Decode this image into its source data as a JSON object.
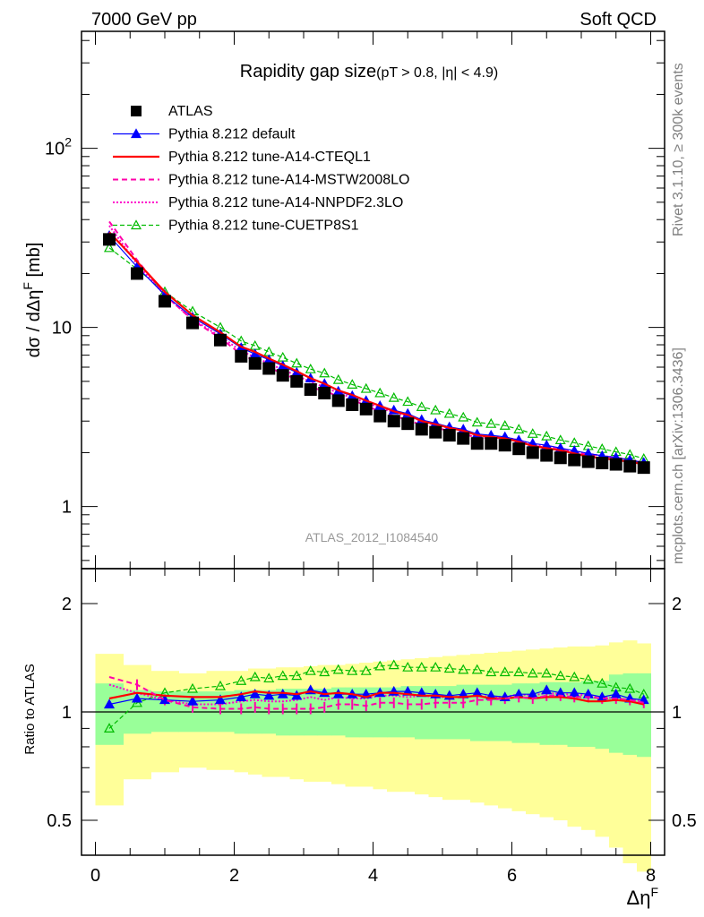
{
  "header": {
    "left": "7000 GeV pp",
    "right": "Soft QCD"
  },
  "side_text": {
    "rivet": "Rivet 3.1.10, ≥ 300k events",
    "mcplots": "mcplots.cern.ch [arXiv:1306.3436]"
  },
  "watermark": "ATLAS_2012_I1084540",
  "colors": {
    "atlas": "#000000",
    "default": "#0000ff",
    "cteql1": "#ff0000",
    "mstw": "#ff00aa",
    "nnpdf": "#ff00cc",
    "cuetp8s1": "#00bb00",
    "band_outer": "#ffff99",
    "band_inner": "#99ff99"
  },
  "chart_data": [
    {
      "type": "line",
      "title": "Rapidity gap size",
      "title_suffix": "(pT > 0.8, |η| < 4.9)",
      "xlabel": "Δη^F",
      "ylabel": "dσ / dΔη^F [mb]",
      "yscale": "log",
      "xlim": [
        -0.2,
        8.2
      ],
      "ylim": [
        0.45,
        450
      ],
      "x_ticks": [
        "0",
        "2",
        "4",
        "6",
        "8"
      ],
      "y_ticks": [
        "1",
        "10",
        "10^2"
      ],
      "x": [
        0.2,
        0.6,
        1.0,
        1.4,
        1.8,
        2.1,
        2.3,
        2.5,
        2.7,
        2.9,
        3.1,
        3.3,
        3.5,
        3.7,
        3.9,
        4.1,
        4.3,
        4.5,
        4.7,
        4.9,
        5.1,
        5.3,
        5.5,
        5.7,
        5.9,
        6.1,
        6.3,
        6.5,
        6.7,
        6.9,
        7.1,
        7.3,
        7.5,
        7.7,
        7.9
      ],
      "series": [
        {
          "name": "ATLAS",
          "style": "square",
          "values": [
            31,
            20,
            14,
            10.6,
            8.5,
            6.9,
            6.3,
            5.9,
            5.4,
            5.0,
            4.5,
            4.3,
            3.9,
            3.7,
            3.5,
            3.2,
            3.0,
            2.9,
            2.7,
            2.6,
            2.5,
            2.4,
            2.25,
            2.25,
            2.2,
            2.1,
            2.0,
            1.93,
            1.87,
            1.82,
            1.78,
            1.75,
            1.72,
            1.68,
            1.65
          ]
        },
        {
          "name": "Pythia 8.212 default",
          "style": "blue-tri",
          "values": [
            32.5,
            21.8,
            15.2,
            11.4,
            9.2,
            7.7,
            7.1,
            6.6,
            6.1,
            5.6,
            5.2,
            4.85,
            4.4,
            4.15,
            3.9,
            3.65,
            3.45,
            3.3,
            3.05,
            2.92,
            2.78,
            2.7,
            2.54,
            2.5,
            2.45,
            2.35,
            2.25,
            2.2,
            2.12,
            2.05,
            1.98,
            1.92,
            1.88,
            1.82,
            1.76
          ]
        },
        {
          "name": "Pythia 8.212 tune-A14-CTEQL1",
          "style": "red-solid",
          "values": [
            34,
            23.3,
            15.8,
            11.7,
            9.4,
            7.8,
            7.3,
            6.7,
            6.2,
            5.7,
            5.2,
            4.85,
            4.45,
            4.2,
            3.9,
            3.65,
            3.4,
            3.25,
            3.0,
            2.88,
            2.75,
            2.65,
            2.5,
            2.45,
            2.4,
            2.3,
            2.18,
            2.12,
            2.06,
            1.98,
            1.9,
            1.86,
            1.82,
            1.78,
            1.72
          ]
        },
        {
          "name": "Pythia 8.212 tune-A14-MSTW2008LO",
          "style": "mag-dash",
          "values": [
            39,
            23.8,
            15.2,
            11.0,
            8.7,
            7.1,
            6.5,
            6.0,
            5.5,
            5.15,
            4.6,
            4.45,
            4.1,
            3.95,
            3.65,
            3.4,
            3.2,
            3.05,
            2.85,
            2.75,
            2.65,
            2.55,
            2.42,
            2.43,
            2.4,
            2.32,
            2.18,
            2.14,
            2.08,
            2.0,
            1.95,
            1.9,
            1.88,
            1.8,
            1.74
          ]
        },
        {
          "name": "Pythia 8.212 tune-A14-NNPDF2.3LO",
          "style": "mag-dot",
          "values": [
            37,
            22.6,
            15.1,
            11.1,
            8.9,
            7.4,
            6.8,
            6.3,
            5.8,
            5.4,
            4.95,
            4.65,
            4.3,
            4.05,
            3.8,
            3.55,
            3.35,
            3.2,
            3.0,
            2.85,
            2.75,
            2.65,
            2.5,
            2.48,
            2.43,
            2.35,
            2.22,
            2.18,
            2.1,
            2.03,
            1.97,
            1.92,
            1.88,
            1.82,
            1.76
          ]
        },
        {
          "name": "Pythia 8.212 tune-CUETP8S1",
          "style": "green-tri",
          "values": [
            27.8,
            21.2,
            15.8,
            12.3,
            10.0,
            8.4,
            7.9,
            7.3,
            6.8,
            6.3,
            5.85,
            5.55,
            5.1,
            4.8,
            4.55,
            4.3,
            4.05,
            3.85,
            3.6,
            3.45,
            3.3,
            3.15,
            2.95,
            2.9,
            2.83,
            2.7,
            2.55,
            2.47,
            2.35,
            2.27,
            2.18,
            2.1,
            2.02,
            1.95,
            1.85
          ]
        }
      ]
    },
    {
      "type": "line",
      "title": "",
      "xlabel": "Δη^F",
      "ylabel": "Ratio to ATLAS",
      "yscale": "log",
      "xlim": [
        -0.2,
        8.2
      ],
      "ylim": [
        0.4,
        2.5
      ],
      "x_ticks": [
        "0",
        "2",
        "4",
        "6",
        "8"
      ],
      "y_ticks": [
        "0.5",
        "1",
        "2"
      ],
      "band_edges": [
        0,
        0.4,
        0.8,
        1.2,
        1.6,
        2.0,
        2.2,
        2.4,
        2.6,
        2.8,
        3.0,
        3.2,
        3.4,
        3.6,
        3.8,
        4.0,
        4.2,
        4.4,
        4.6,
        4.8,
        5.0,
        5.2,
        5.4,
        5.6,
        5.8,
        6.0,
        6.2,
        6.4,
        6.6,
        6.8,
        7.0,
        7.2,
        7.4,
        7.6,
        7.8,
        8.0
      ],
      "band_outer_hi": [
        1.45,
        1.35,
        1.3,
        1.28,
        1.3,
        1.3,
        1.32,
        1.32,
        1.33,
        1.33,
        1.34,
        1.35,
        1.35,
        1.36,
        1.37,
        1.38,
        1.39,
        1.4,
        1.41,
        1.42,
        1.43,
        1.44,
        1.45,
        1.46,
        1.47,
        1.48,
        1.49,
        1.5,
        1.51,
        1.52,
        1.52,
        1.53,
        1.56,
        1.58,
        1.55
      ],
      "band_outer_lo": [
        0.55,
        0.65,
        0.68,
        0.7,
        0.69,
        0.68,
        0.67,
        0.66,
        0.66,
        0.65,
        0.64,
        0.64,
        0.63,
        0.62,
        0.62,
        0.61,
        0.6,
        0.6,
        0.59,
        0.58,
        0.57,
        0.57,
        0.56,
        0.55,
        0.54,
        0.53,
        0.52,
        0.51,
        0.5,
        0.48,
        0.47,
        0.45,
        0.42,
        0.38,
        0.36
      ],
      "band_inner_hi": [
        1.2,
        1.15,
        1.14,
        1.14,
        1.14,
        1.15,
        1.15,
        1.15,
        1.16,
        1.16,
        1.16,
        1.16,
        1.17,
        1.17,
        1.17,
        1.17,
        1.17,
        1.18,
        1.18,
        1.18,
        1.18,
        1.19,
        1.19,
        1.19,
        1.19,
        1.2,
        1.2,
        1.21,
        1.21,
        1.21,
        1.22,
        1.22,
        1.27,
        1.28,
        1.28
      ],
      "band_inner_lo": [
        0.81,
        0.87,
        0.88,
        0.88,
        0.88,
        0.87,
        0.87,
        0.87,
        0.86,
        0.86,
        0.86,
        0.86,
        0.86,
        0.85,
        0.85,
        0.85,
        0.85,
        0.85,
        0.84,
        0.84,
        0.84,
        0.84,
        0.83,
        0.83,
        0.83,
        0.82,
        0.82,
        0.81,
        0.81,
        0.8,
        0.8,
        0.79,
        0.77,
        0.76,
        0.75
      ],
      "x": [
        0.2,
        0.6,
        1.0,
        1.4,
        1.8,
        2.1,
        2.3,
        2.5,
        2.7,
        2.9,
        3.1,
        3.3,
        3.5,
        3.7,
        3.9,
        4.1,
        4.3,
        4.5,
        4.7,
        4.9,
        5.1,
        5.3,
        5.5,
        5.7,
        5.9,
        6.1,
        6.3,
        6.5,
        6.7,
        6.9,
        7.1,
        7.3,
        7.5,
        7.7,
        7.9
      ],
      "series": [
        {
          "name": "Pythia 8.212 default",
          "style": "blue-tri",
          "values": [
            1.05,
            1.09,
            1.08,
            1.07,
            1.08,
            1.1,
            1.12,
            1.11,
            1.12,
            1.11,
            1.15,
            1.13,
            1.12,
            1.12,
            1.12,
            1.13,
            1.14,
            1.14,
            1.13,
            1.12,
            1.11,
            1.12,
            1.13,
            1.11,
            1.1,
            1.12,
            1.12,
            1.15,
            1.13,
            1.13,
            1.12,
            1.1,
            1.12,
            1.09,
            1.08
          ]
        },
        {
          "name": "Pythia 8.212 tune-A14-CTEQL1",
          "style": "red-solid",
          "values": [
            1.09,
            1.13,
            1.11,
            1.1,
            1.1,
            1.12,
            1.14,
            1.13,
            1.13,
            1.12,
            1.14,
            1.12,
            1.13,
            1.12,
            1.1,
            1.13,
            1.13,
            1.12,
            1.11,
            1.11,
            1.1,
            1.1,
            1.11,
            1.09,
            1.09,
            1.1,
            1.09,
            1.1,
            1.1,
            1.09,
            1.07,
            1.07,
            1.08,
            1.07,
            1.05
          ]
        },
        {
          "name": "Pythia 8.212 tune-A14-MSTW2008LO",
          "style": "mag-dash",
          "values": [
            1.25,
            1.19,
            1.08,
            1.03,
            1.02,
            1.02,
            1.03,
            1.02,
            1.02,
            1.02,
            1.02,
            1.03,
            1.05,
            1.05,
            1.04,
            1.06,
            1.06,
            1.05,
            1.05,
            1.06,
            1.06,
            1.06,
            1.08,
            1.08,
            1.09,
            1.1,
            1.09,
            1.11,
            1.11,
            1.1,
            1.1,
            1.09,
            1.09,
            1.08,
            1.06
          ]
        },
        {
          "name": "Pythia 8.212 tune-A14-NNPDF2.3LO",
          "style": "mag-dot",
          "values": [
            1.19,
            1.13,
            1.08,
            1.05,
            1.05,
            1.07,
            1.08,
            1.07,
            1.07,
            1.08,
            1.1,
            1.08,
            1.1,
            1.09,
            1.09,
            1.11,
            1.11,
            1.1,
            1.11,
            1.1,
            1.1,
            1.1,
            1.11,
            1.1,
            1.1,
            1.12,
            1.11,
            1.13,
            1.12,
            1.12,
            1.11,
            1.1,
            1.09,
            1.08,
            1.07
          ]
        },
        {
          "name": "Pythia 8.212 tune-CUETP8S1",
          "style": "green-tri",
          "values": [
            0.9,
            1.06,
            1.13,
            1.16,
            1.18,
            1.22,
            1.25,
            1.24,
            1.26,
            1.26,
            1.3,
            1.29,
            1.31,
            1.3,
            1.3,
            1.34,
            1.35,
            1.33,
            1.33,
            1.33,
            1.32,
            1.31,
            1.31,
            1.29,
            1.29,
            1.29,
            1.28,
            1.28,
            1.26,
            1.25,
            1.23,
            1.2,
            1.17,
            1.16,
            1.12
          ]
        }
      ]
    }
  ]
}
